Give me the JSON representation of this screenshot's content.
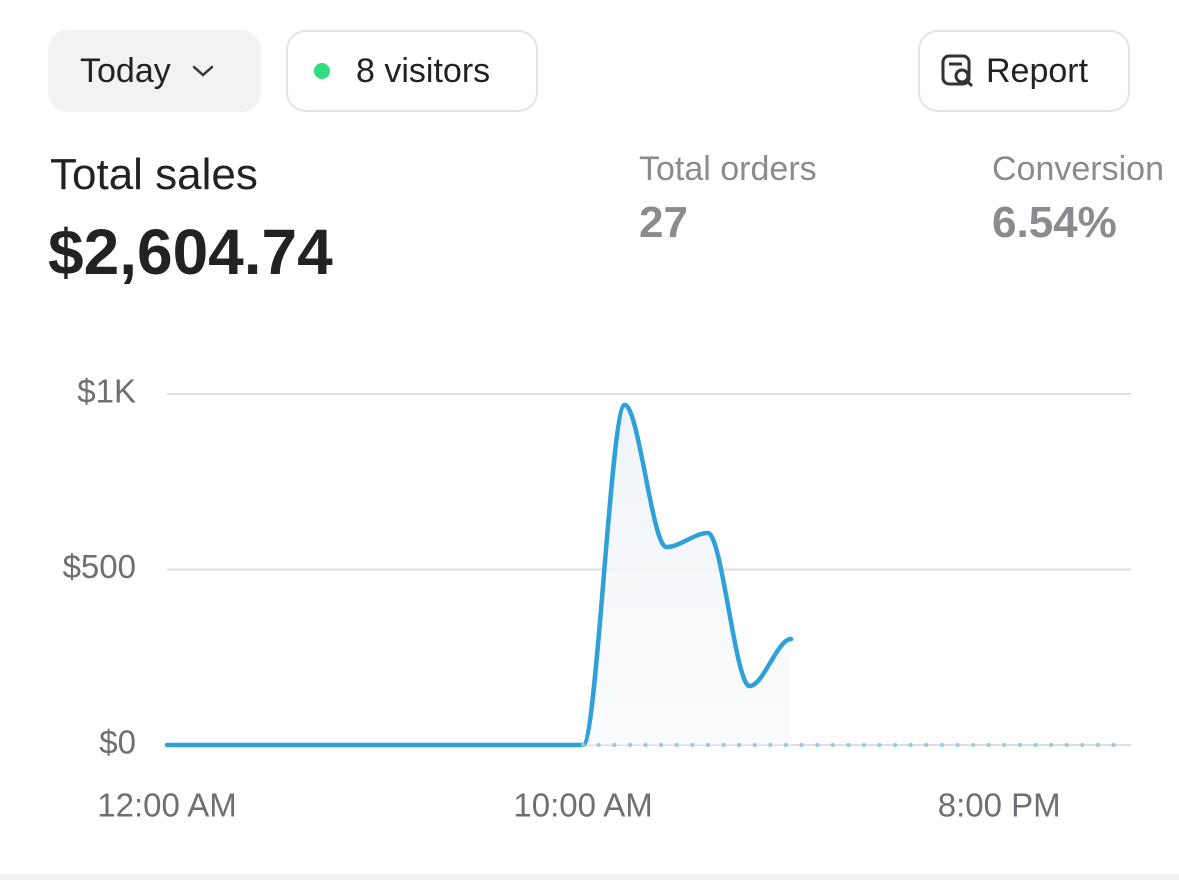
{
  "header": {
    "period": "Today",
    "visitors": "8 visitors",
    "report": "Report"
  },
  "metrics": [
    {
      "label": "Total sales",
      "value": "$2,604.74"
    },
    {
      "label": "Total orders",
      "value": "27"
    },
    {
      "label": "Conversion",
      "value": "6.54%"
    }
  ],
  "chart_data": {
    "type": "line",
    "x": [
      0,
      1,
      2,
      3,
      4,
      5,
      6,
      7,
      8,
      9,
      10,
      11,
      12,
      13,
      14,
      15,
      16,
      17,
      18,
      19,
      20,
      21,
      22,
      23
    ],
    "series": [
      {
        "color": "#2fa0d8",
        "values": [
          0,
          0,
          0,
          0,
          0,
          0,
          0,
          0,
          0,
          0,
          0,
          969,
          564,
          604,
          168,
          302,
          null,
          null,
          null,
          null,
          null,
          null,
          null,
          null
        ]
      },
      {
        "color": "#8fcbe6",
        "dashed": true,
        "values": [
          null,
          null,
          null,
          null,
          null,
          null,
          null,
          null,
          null,
          null,
          0,
          0,
          0,
          0,
          0,
          0,
          0,
          0,
          0,
          0,
          0,
          0,
          0,
          0
        ]
      }
    ],
    "xlim": [
      0,
      23
    ],
    "xticks": [
      {
        "value": 0,
        "label": "12:00 AM"
      },
      {
        "value": 10,
        "label": "10:00 AM"
      },
      {
        "value": 20,
        "label": "8:00 PM"
      }
    ],
    "ylim": [
      0,
      1000
    ],
    "yticks": [
      {
        "value": 0,
        "label": "$0"
      },
      {
        "value": 500,
        "label": "$500"
      },
      {
        "value": 1000,
        "label": "$1K"
      }
    ],
    "grid": true
  }
}
